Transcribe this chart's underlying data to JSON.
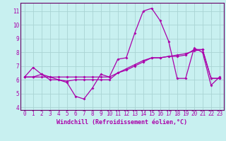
{
  "xlabel": "Windchill (Refroidissement éolien,°C)",
  "bg_color": "#c8f0f0",
  "grid_color": "#aad4d4",
  "line_color": "#aa00aa",
  "spine_color": "#660066",
  "xlim": [
    -0.5,
    23.5
  ],
  "ylim": [
    3.8,
    11.6
  ],
  "yticks": [
    4,
    5,
    6,
    7,
    8,
    9,
    10,
    11
  ],
  "xticks": [
    0,
    1,
    2,
    3,
    4,
    5,
    6,
    7,
    8,
    9,
    10,
    11,
    12,
    13,
    14,
    15,
    16,
    17,
    18,
    19,
    20,
    21,
    22,
    23
  ],
  "series1_x": [
    0,
    1,
    2,
    3,
    4,
    5,
    6,
    7,
    8,
    9,
    10,
    11,
    12,
    13,
    14,
    15,
    16,
    17,
    18,
    19,
    20,
    21,
    22,
    23
  ],
  "series1_y": [
    6.2,
    6.9,
    6.4,
    6.0,
    6.0,
    5.8,
    4.8,
    4.6,
    5.4,
    6.4,
    6.2,
    7.5,
    7.6,
    9.4,
    11.0,
    11.2,
    10.3,
    8.8,
    6.1,
    6.1,
    8.3,
    8.0,
    5.6,
    6.2
  ],
  "series2_x": [
    0,
    1,
    2,
    3,
    4,
    5,
    6,
    7,
    8,
    9,
    10,
    11,
    12,
    13,
    14,
    15,
    16,
    17,
    18,
    19,
    20,
    21,
    22,
    23
  ],
  "series2_y": [
    6.2,
    6.2,
    6.2,
    6.2,
    6.2,
    6.2,
    6.2,
    6.2,
    6.2,
    6.2,
    6.2,
    6.5,
    6.7,
    7.0,
    7.3,
    7.6,
    7.6,
    7.7,
    7.8,
    7.9,
    8.1,
    8.2,
    6.1,
    6.1
  ],
  "series3_x": [
    0,
    1,
    2,
    3,
    4,
    5,
    6,
    7,
    8,
    9,
    10,
    11,
    12,
    13,
    14,
    15,
    16,
    17,
    18,
    19,
    20,
    21,
    22,
    23
  ],
  "series3_y": [
    6.2,
    6.2,
    6.4,
    6.2,
    6.0,
    5.9,
    6.0,
    6.0,
    6.0,
    6.0,
    6.0,
    6.5,
    6.8,
    7.1,
    7.4,
    7.6,
    7.6,
    7.7,
    7.7,
    7.8,
    8.2,
    8.2,
    6.1,
    6.1
  ],
  "tick_fontsize": 5.5,
  "xlabel_fontsize": 6.0,
  "marker_size": 2.0,
  "line_width": 0.9
}
